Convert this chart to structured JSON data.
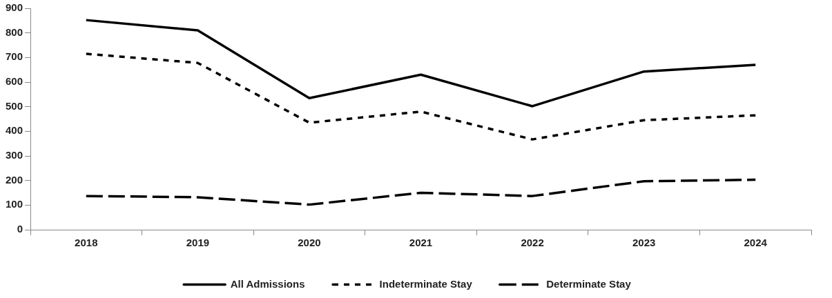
{
  "chart_data": {
    "type": "line",
    "categories": [
      "2018",
      "2019",
      "2020",
      "2021",
      "2022",
      "2023",
      "2024"
    ],
    "series": [
      {
        "name": "All Admissions",
        "color": "#000000",
        "line_style": "solid",
        "values": [
          852,
          810,
          535,
          630,
          502,
          643,
          670
        ]
      },
      {
        "name": "Indeterminate Stay",
        "color": "#000000",
        "line_style": "dotted",
        "values": [
          715,
          678,
          435,
          480,
          367,
          445,
          465
        ]
      },
      {
        "name": "Determinate Stay",
        "color": "#000000",
        "line_style": "dashed",
        "values": [
          137,
          132,
          102,
          150,
          137,
          197,
          203
        ]
      }
    ],
    "ylim": [
      0,
      900
    ],
    "yticks": [
      0,
      100,
      200,
      300,
      400,
      500,
      600,
      700,
      800,
      900
    ],
    "grid": false,
    "legend": "bottom",
    "marker": "none"
  }
}
